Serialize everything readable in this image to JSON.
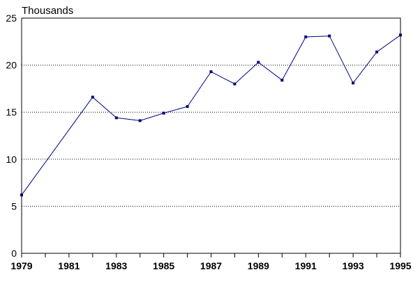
{
  "chart_data": {
    "type": "line",
    "title": "",
    "ylabel": "Thousands",
    "xlabel": "",
    "xlim": [
      1979,
      1995
    ],
    "ylim": [
      0,
      25
    ],
    "x_tick_labels": [
      "1979",
      "1981",
      "1983",
      "1985",
      "1987",
      "1989",
      "1991",
      "1993",
      "1995"
    ],
    "y_tick_labels": [
      "0",
      "5",
      "10",
      "15",
      "20",
      "25"
    ],
    "grid": "horizontal dotted",
    "x": [
      1979,
      1982,
      1983,
      1984,
      1985,
      1986,
      1987,
      1988,
      1989,
      1990,
      1991,
      1992,
      1993,
      1994,
      1995
    ],
    "series": [
      {
        "values": [
          6.2,
          16.6,
          14.4,
          14.1,
          14.9,
          15.6,
          19.3,
          18.0,
          20.3,
          18.4,
          23.0,
          23.1,
          18.1,
          21.4,
          23.2
        ],
        "color": "#000080"
      }
    ]
  }
}
